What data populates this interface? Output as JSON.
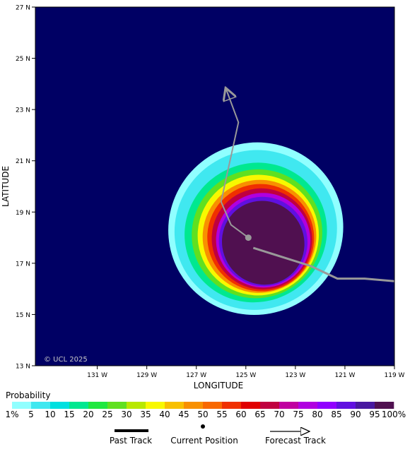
{
  "map": {
    "y_axis_title": "LATITUDE",
    "x_axis_title": "LONGITUDE",
    "lat_labels": [
      "27 N",
      "25 N",
      "23 N",
      "21 N",
      "19 N",
      "17 N",
      "15 N",
      "13 N"
    ],
    "lat_values": [
      27,
      25,
      23,
      21,
      19,
      17,
      15,
      13
    ],
    "lon_labels": [
      "131 W",
      "129 W",
      "127 W",
      "125 W",
      "123 W",
      "121 W",
      "119 W"
    ],
    "lon_values": [
      -131,
      -129,
      -127,
      -125,
      -123,
      -121,
      -119
    ],
    "lon_range": [
      -133.5,
      -119
    ],
    "lat_range": [
      13,
      27
    ],
    "copyright": "© UCL 2025",
    "background_color": "#000064",
    "track_color": "#999999",
    "past_track": [
      [
        -119,
        16.3
      ],
      [
        -120.2,
        16.4
      ],
      [
        -121.3,
        16.4
      ],
      [
        -122.4,
        16.9
      ],
      [
        -124.7,
        17.6
      ]
    ],
    "current_position": [
      -124.9,
      18.0
    ],
    "forecast_track": [
      [
        -124.9,
        18.0
      ],
      [
        -125.6,
        18.5
      ],
      [
        -126,
        19.4
      ],
      [
        -125.8,
        20.3
      ],
      [
        -125.3,
        22.5
      ],
      [
        -125.8,
        23.8
      ]
    ],
    "probability_contours": [
      {
        "level": 1,
        "center": [
          -124.6,
          18.35
        ],
        "radius_x": 3.55,
        "radius_y": 3.35,
        "tilt": -28
      },
      {
        "level": 5,
        "center": [
          -124.6,
          18.3
        ],
        "radius_x": 3.3,
        "radius_y": 3.1,
        "tilt": -28
      },
      {
        "level": 15,
        "center": [
          -124.6,
          18.2
        ],
        "radius_x": 2.9,
        "radius_y": 2.7,
        "tilt": -30
      },
      {
        "level": 25,
        "center": [
          -124.55,
          18.15
        ],
        "radius_x": 2.65,
        "radius_y": 2.5,
        "tilt": -30
      },
      {
        "level": 35,
        "center": [
          -124.5,
          18.1
        ],
        "radius_x": 2.45,
        "radius_y": 2.35,
        "tilt": -30
      },
      {
        "level": 45,
        "center": [
          -124.45,
          18.05
        ],
        "radius_x": 2.3,
        "radius_y": 2.2,
        "tilt": -30
      },
      {
        "level": 55,
        "center": [
          -124.4,
          18.0
        ],
        "radius_x": 2.15,
        "radius_y": 2.1,
        "tilt": -30
      },
      {
        "level": 65,
        "center": [
          -124.35,
          17.95
        ],
        "radius_x": 2.02,
        "radius_y": 1.98,
        "tilt": -30
      },
      {
        "level": 75,
        "center": [
          -124.3,
          17.9
        ],
        "radius_x": 1.9,
        "radius_y": 1.85,
        "tilt": -30
      },
      {
        "level": 85,
        "center": [
          -124.3,
          17.85
        ],
        "radius_x": 1.78,
        "radius_y": 1.75,
        "tilt": -30
      },
      {
        "level": 95,
        "center": [
          -124.3,
          17.8
        ],
        "radius_x": 1.65,
        "radius_y": 1.65,
        "tilt": -30
      }
    ]
  },
  "legend": {
    "title": "Probability",
    "tick_labels": [
      "1%",
      "5",
      "10",
      "15",
      "20",
      "25",
      "30",
      "35",
      "40",
      "45",
      "50",
      "55",
      "60",
      "65",
      "70",
      "75",
      "80",
      "85",
      "90",
      "95",
      "100%"
    ],
    "colors": [
      "#90ffff",
      "#40e8f0",
      "#00e0e0",
      "#00e890",
      "#20e840",
      "#60e020",
      "#b8e800",
      "#f8f800",
      "#f8c000",
      "#f89000",
      "#f86800",
      "#f03000",
      "#e00000",
      "#c00040",
      "#c000a0",
      "#b000e0",
      "#9000ff",
      "#6010e0",
      "#4818a0",
      "#501050"
    ],
    "past_track_label": "Past Track",
    "current_position_label": "Current Position",
    "forecast_track_label": "Forecast Track"
  }
}
